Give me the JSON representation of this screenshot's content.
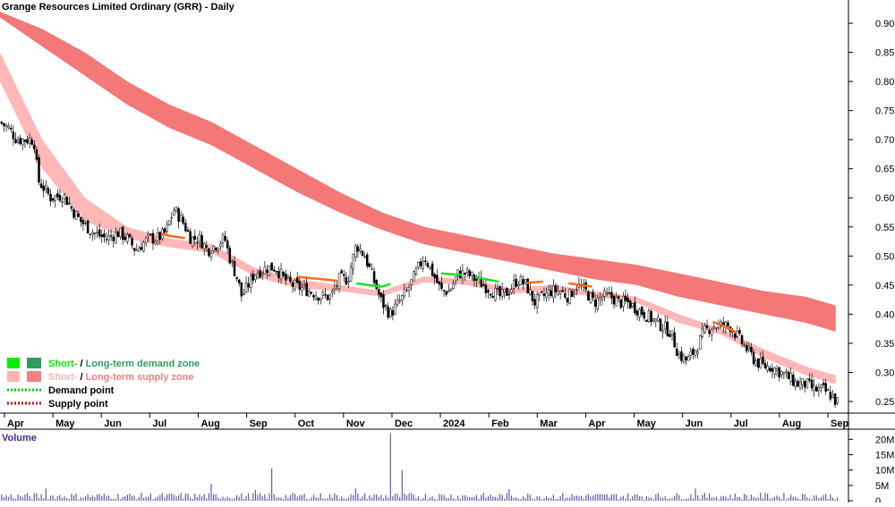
{
  "chart_data": {
    "type": "candlestick",
    "title": "Grange Resources Limited Ordinary (GRR) - Daily",
    "price_axis": {
      "ticks": [
        "0.90",
        "0.85",
        "0.80",
        "0.75",
        "0.70",
        "0.65",
        "0.60",
        "0.55",
        "0.50",
        "0.45",
        "0.40",
        "0.35",
        "0.30",
        "0.25"
      ],
      "range": [
        0.23,
        0.94
      ]
    },
    "x_axis": {
      "labels": [
        "Apr",
        "May",
        "Jun",
        "Jul",
        "Aug",
        "Sep",
        "Oct",
        "Nov",
        "Dec",
        "2024",
        "Feb",
        "Mar",
        "Apr",
        "May",
        "Jun",
        "Jul",
        "Aug",
        "Sep"
      ]
    },
    "legend": [
      {
        "short": "Short-",
        "sep": " / ",
        "long": "Long-term demand zone",
        "short_color": "#00ee00",
        "long_color": "#2e9e5e"
      },
      {
        "short": "Short-",
        "sep": " / ",
        "long": "Long-term supply zone",
        "short_color": "#ffb3b3",
        "long_color": "#f08080"
      },
      {
        "label": "Demand point",
        "color": "#00cc00"
      },
      {
        "label": "Supply point",
        "color": "#dd0000"
      }
    ],
    "volume_panel": {
      "label": "Volume",
      "ticks": [
        "20M",
        "15M",
        "10M",
        "5M",
        "0"
      ],
      "range": [
        0,
        23
      ]
    },
    "close_path": [
      [
        0.0,
        0.73
      ],
      [
        0.01,
        0.72
      ],
      [
        0.02,
        0.7
      ],
      [
        0.03,
        0.7
      ],
      [
        0.04,
        0.7
      ],
      [
        0.045,
        0.63
      ],
      [
        0.06,
        0.6
      ],
      [
        0.075,
        0.605
      ],
      [
        0.085,
        0.58
      ],
      [
        0.095,
        0.56
      ],
      [
        0.11,
        0.54
      ],
      [
        0.125,
        0.53
      ],
      [
        0.14,
        0.54
      ],
      [
        0.15,
        0.53
      ],
      [
        0.16,
        0.51
      ],
      [
        0.175,
        0.53
      ],
      [
        0.185,
        0.53
      ],
      [
        0.195,
        0.54
      ],
      [
        0.205,
        0.58
      ],
      [
        0.215,
        0.56
      ],
      [
        0.225,
        0.53
      ],
      [
        0.235,
        0.53
      ],
      [
        0.245,
        0.51
      ],
      [
        0.255,
        0.52
      ],
      [
        0.265,
        0.53
      ],
      [
        0.27,
        0.5
      ],
      [
        0.28,
        0.46
      ],
      [
        0.285,
        0.43
      ],
      [
        0.3,
        0.47
      ],
      [
        0.315,
        0.48
      ],
      [
        0.325,
        0.48
      ],
      [
        0.335,
        0.46
      ],
      [
        0.345,
        0.45
      ],
      [
        0.365,
        0.44
      ],
      [
        0.38,
        0.43
      ],
      [
        0.39,
        0.43
      ],
      [
        0.4,
        0.46
      ],
      [
        0.41,
        0.46
      ],
      [
        0.42,
        0.52
      ],
      [
        0.43,
        0.5
      ],
      [
        0.44,
        0.46
      ],
      [
        0.45,
        0.42
      ],
      [
        0.46,
        0.4
      ],
      [
        0.47,
        0.42
      ],
      [
        0.48,
        0.44
      ],
      [
        0.49,
        0.47
      ],
      [
        0.5,
        0.5
      ],
      [
        0.51,
        0.47
      ],
      [
        0.52,
        0.44
      ],
      [
        0.53,
        0.44
      ],
      [
        0.54,
        0.47
      ],
      [
        0.55,
        0.47
      ],
      [
        0.56,
        0.46
      ],
      [
        0.57,
        0.45
      ],
      [
        0.58,
        0.44
      ],
      [
        0.59,
        0.43
      ],
      [
        0.6,
        0.44
      ],
      [
        0.61,
        0.46
      ],
      [
        0.62,
        0.45
      ],
      [
        0.63,
        0.42
      ],
      [
        0.64,
        0.43
      ],
      [
        0.65,
        0.44
      ],
      [
        0.66,
        0.44
      ],
      [
        0.67,
        0.43
      ],
      [
        0.68,
        0.45
      ],
      [
        0.69,
        0.44
      ],
      [
        0.7,
        0.42
      ],
      [
        0.71,
        0.43
      ],
      [
        0.72,
        0.43
      ],
      [
        0.73,
        0.42
      ],
      [
        0.74,
        0.42
      ],
      [
        0.75,
        0.41
      ],
      [
        0.76,
        0.4
      ],
      [
        0.77,
        0.39
      ],
      [
        0.78,
        0.38
      ],
      [
        0.79,
        0.37
      ],
      [
        0.8,
        0.33
      ],
      [
        0.81,
        0.32
      ],
      [
        0.82,
        0.34
      ],
      [
        0.83,
        0.37
      ],
      [
        0.84,
        0.38
      ],
      [
        0.85,
        0.38
      ],
      [
        0.86,
        0.38
      ],
      [
        0.87,
        0.36
      ],
      [
        0.88,
        0.34
      ],
      [
        0.89,
        0.32
      ],
      [
        0.9,
        0.31
      ],
      [
        0.91,
        0.31
      ],
      [
        0.92,
        0.3
      ],
      [
        0.93,
        0.29
      ],
      [
        0.94,
        0.28
      ],
      [
        0.95,
        0.28
      ],
      [
        0.96,
        0.27
      ],
      [
        0.97,
        0.27
      ],
      [
        0.98,
        0.26
      ],
      [
        0.985,
        0.25
      ]
    ],
    "short_zone": [
      [
        0.0,
        0.85,
        0.8
      ],
      [
        0.05,
        0.7,
        0.65
      ],
      [
        0.1,
        0.6,
        0.56
      ],
      [
        0.15,
        0.55,
        0.53
      ],
      [
        0.2,
        0.53,
        0.515
      ],
      [
        0.25,
        0.52,
        0.505
      ],
      [
        0.3,
        0.48,
        0.465
      ],
      [
        0.35,
        0.46,
        0.445
      ],
      [
        0.4,
        0.45,
        0.44
      ],
      [
        0.45,
        0.44,
        0.43
      ],
      [
        0.5,
        0.465,
        0.455
      ],
      [
        0.55,
        0.46,
        0.45
      ],
      [
        0.6,
        0.445,
        0.435
      ],
      [
        0.65,
        0.45,
        0.44
      ],
      [
        0.7,
        0.44,
        0.43
      ],
      [
        0.75,
        0.43,
        0.42
      ],
      [
        0.8,
        0.4,
        0.385
      ],
      [
        0.85,
        0.375,
        0.365
      ],
      [
        0.9,
        0.34,
        0.325
      ],
      [
        0.95,
        0.31,
        0.295
      ],
      [
        0.985,
        0.295,
        0.28
      ]
    ],
    "long_zone": [
      [
        0.0,
        0.92,
        0.91
      ],
      [
        0.05,
        0.89,
        0.86
      ],
      [
        0.1,
        0.85,
        0.81
      ],
      [
        0.15,
        0.8,
        0.76
      ],
      [
        0.2,
        0.76,
        0.72
      ],
      [
        0.25,
        0.73,
        0.69
      ],
      [
        0.3,
        0.69,
        0.65
      ],
      [
        0.35,
        0.65,
        0.61
      ],
      [
        0.4,
        0.61,
        0.575
      ],
      [
        0.45,
        0.575,
        0.545
      ],
      [
        0.5,
        0.55,
        0.52
      ],
      [
        0.55,
        0.535,
        0.505
      ],
      [
        0.6,
        0.52,
        0.49
      ],
      [
        0.65,
        0.505,
        0.475
      ],
      [
        0.7,
        0.495,
        0.46
      ],
      [
        0.75,
        0.485,
        0.45
      ],
      [
        0.8,
        0.47,
        0.43
      ],
      [
        0.85,
        0.455,
        0.415
      ],
      [
        0.9,
        0.44,
        0.4
      ],
      [
        0.95,
        0.43,
        0.385
      ],
      [
        0.985,
        0.415,
        0.37
      ]
    ],
    "demand_segments": [
      [
        0.42,
        0.46
      ],
      [
        0.52,
        0.545
      ],
      [
        0.56,
        0.59
      ]
    ],
    "supply_segments": [
      [
        0.19,
        0.22
      ],
      [
        0.35,
        0.4
      ],
      [
        0.62,
        0.64
      ],
      [
        0.67,
        0.7
      ],
      [
        0.84,
        0.87
      ]
    ],
    "volume_spikes": [
      [
        0.25,
        5.5
      ],
      [
        0.32,
        10.5
      ],
      [
        0.46,
        22.0
      ],
      [
        0.475,
        10.0
      ],
      [
        0.3,
        3.5
      ],
      [
        0.42,
        4.0
      ],
      [
        0.6,
        3.8
      ],
      [
        0.82,
        4.0
      ],
      [
        0.055,
        4.0
      ]
    ]
  }
}
